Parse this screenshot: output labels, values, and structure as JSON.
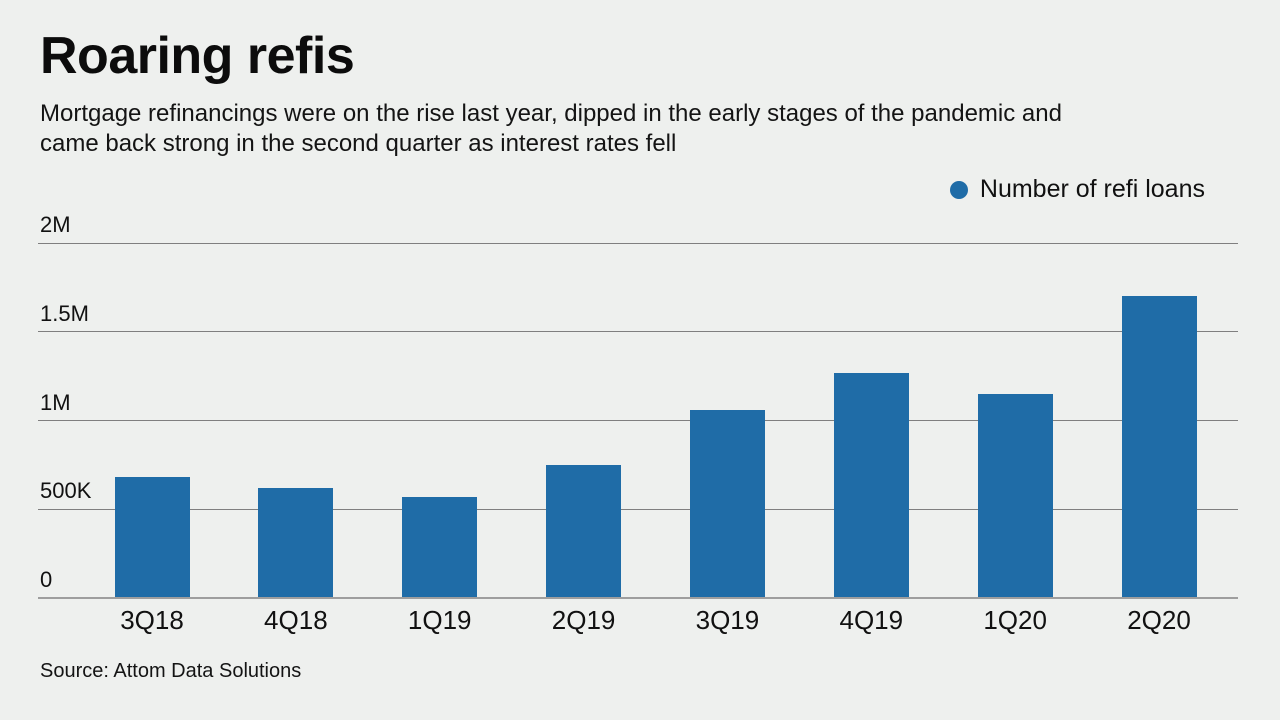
{
  "header": {
    "title": "Roaring refis",
    "subtitle_lines": [
      "Mortgage refinancings were on the rise last year, dipped in the early stages of the pandemic and",
      "came back strong in the second quarter as interest rates fell"
    ]
  },
  "legend": {
    "label": "Number of refi loans",
    "marker_color": "#1f6ca7"
  },
  "footer": {
    "source": "Source: Attom Data Solutions"
  },
  "colors": {
    "background": "#eef0ee",
    "bar": "#1f6ca7",
    "gridline": "#7f7f7f",
    "axisline": "#9e9e9e",
    "text": "#111111"
  },
  "chart_data": {
    "type": "bar",
    "title": "Roaring refis",
    "subtitle": "Mortgage refinancings were on the rise last year, dipped in the early stages of the pandemic and came back strong in the second quarter as interest rates fell",
    "series_name": "Number of refi loans",
    "categories": [
      "3Q18",
      "4Q18",
      "1Q19",
      "2Q19",
      "3Q19",
      "4Q19",
      "1Q20",
      "2Q20"
    ],
    "values": [
      680000,
      620000,
      570000,
      750000,
      1060000,
      1270000,
      1150000,
      1700000
    ],
    "xlabel": "",
    "ylabel": "",
    "ylim": [
      0,
      2000000
    ],
    "y_tick_values": [
      0,
      500000,
      1000000,
      1500000,
      2000000
    ],
    "y_tick_labels": [
      "0",
      "500K",
      "1M",
      "1.5M",
      "2M"
    ],
    "grid": true,
    "legend_position": "top-right",
    "bar_color": "#1f6ca7",
    "source": "Source: Attom Data Solutions"
  }
}
